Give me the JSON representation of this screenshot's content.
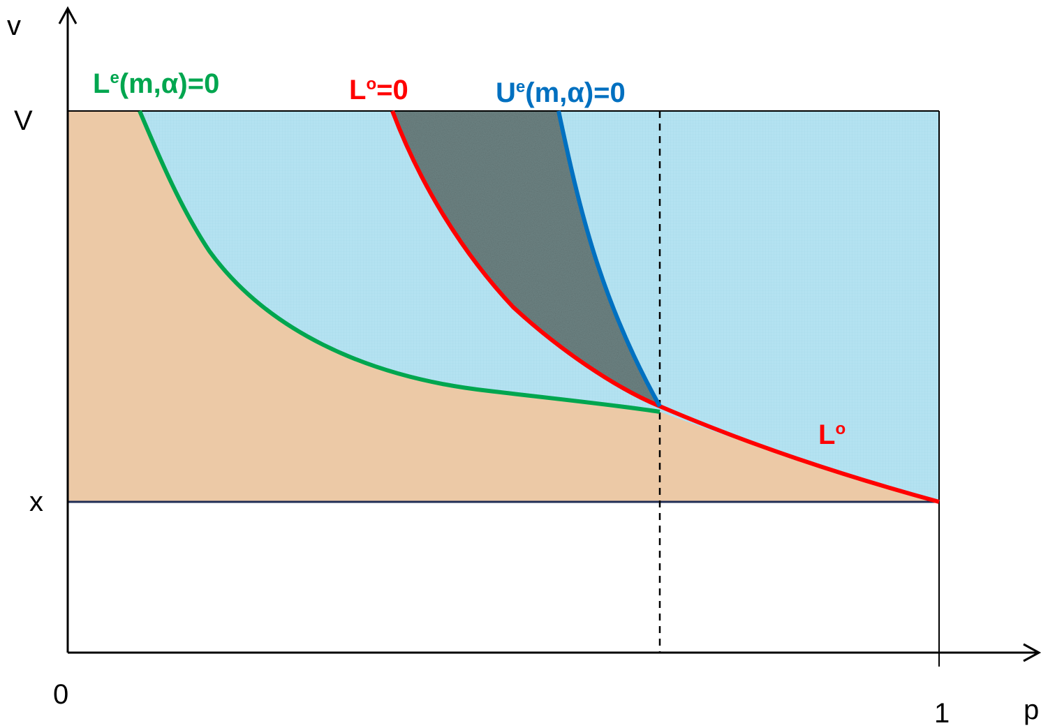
{
  "axes": {
    "y_label": "v",
    "x_label": "p",
    "y_tick_top": "V",
    "y_tick_bottom": "x",
    "x_tick_origin": "0",
    "x_tick_end": "1"
  },
  "labels": {
    "le": {
      "base": "L",
      "sup": "e",
      "rest": "(m,α)=0",
      "color": "#00a64f"
    },
    "lo": {
      "base": "L",
      "sup": "o",
      "rest": "=0",
      "color": "#ff0000"
    },
    "ue": {
      "base": "U",
      "sup": "e",
      "rest": "(m,α)=0",
      "color": "#0070c0"
    },
    "lo_lower": {
      "base": "L",
      "sup": "o",
      "color": "#ff0000"
    }
  },
  "colors": {
    "region_orange": "#ecc9a6",
    "region_blue": "#b4e2f1",
    "region_gray": "#6e8484",
    "green_curve": "#00a64f",
    "red_curve": "#ff0000",
    "blue_curve": "#0070c0",
    "axis": "#000000"
  }
}
